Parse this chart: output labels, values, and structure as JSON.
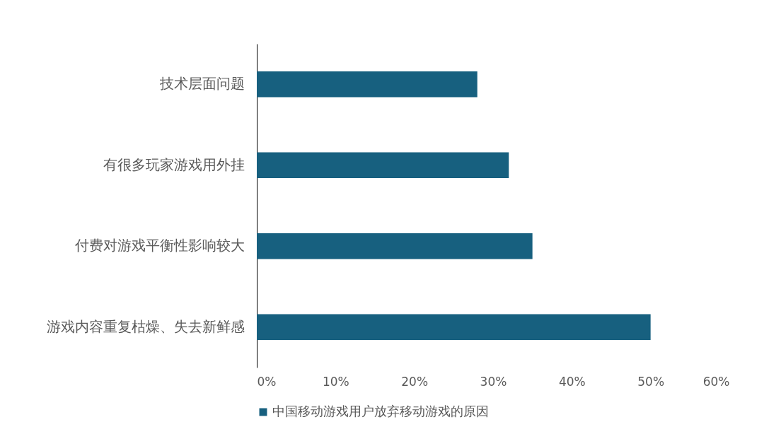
{
  "chart_data": {
    "type": "bar",
    "orientation": "horizontal",
    "categories": [
      "技术层面问题",
      "有很多玩家游戏用外挂",
      "付费对游戏平衡性影响较大",
      "游戏内容重复枯燥、失去新鲜感"
    ],
    "series": [
      {
        "name": "中国移动游戏用户放弃移动游戏的原因",
        "color": "#17607f",
        "values": [
          28,
          32,
          35,
          50
        ]
      }
    ],
    "xlim": [
      0,
      60
    ],
    "xticks": [
      {
        "value": 0,
        "label": "0%"
      },
      {
        "value": 10,
        "label": "10%"
      },
      {
        "value": 20,
        "label": "20%"
      },
      {
        "value": 30,
        "label": "30%"
      },
      {
        "value": 40,
        "label": "40%"
      },
      {
        "value": 50,
        "label": "50%"
      },
      {
        "value": 60,
        "label": "60%"
      }
    ],
    "grid": false,
    "legend": "bottom"
  }
}
